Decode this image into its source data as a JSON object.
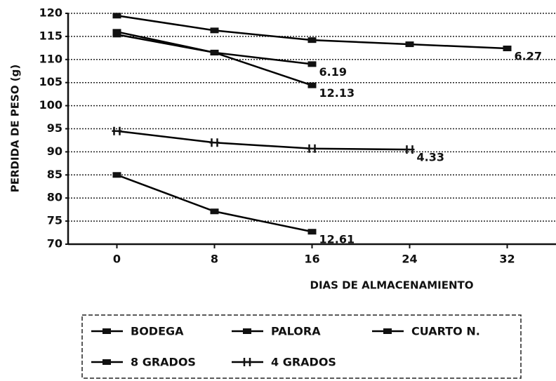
{
  "chart_data": {
    "type": "line",
    "xlabel": "DIAS DE ALMACENAMIENTO",
    "ylabel": "PERDIDA DE PESO (g)",
    "xlim": [
      -4,
      36
    ],
    "xticks": [
      0,
      8,
      16,
      24,
      32
    ],
    "ylim": [
      70,
      120
    ],
    "yticks": [
      70,
      75,
      80,
      85,
      90,
      95,
      100,
      105,
      110,
      115,
      120
    ],
    "grid": true,
    "series": [
      {
        "name": "BODEGA",
        "color": "#000000",
        "x": [
          0,
          8,
          16,
          24,
          32
        ],
        "values": [
          119.5,
          116.3,
          114.2,
          113.3,
          112.4
        ],
        "end_label": "6.27"
      },
      {
        "name": "PALORA",
        "color": "#000000",
        "x": [
          0,
          8,
          16
        ],
        "values": [
          116,
          111.5,
          109
        ],
        "end_label": "6.19"
      },
      {
        "name": "CUARTO N.",
        "color": "#000000",
        "x": [
          0,
          8,
          16
        ],
        "values": [
          115.4,
          111.5,
          104.4
        ],
        "end_label": "12.13"
      },
      {
        "name": "8 GRADOS",
        "color": "#000000",
        "x": [
          0,
          8,
          16
        ],
        "values": [
          85,
          77.1,
          72.7
        ],
        "end_label": "12.61"
      },
      {
        "name": "4 GRADOS",
        "color": "#000000",
        "x": [
          0,
          8,
          16,
          24
        ],
        "values": [
          94.5,
          92,
          90.7,
          90.5
        ],
        "end_label": "4.33"
      }
    ]
  }
}
